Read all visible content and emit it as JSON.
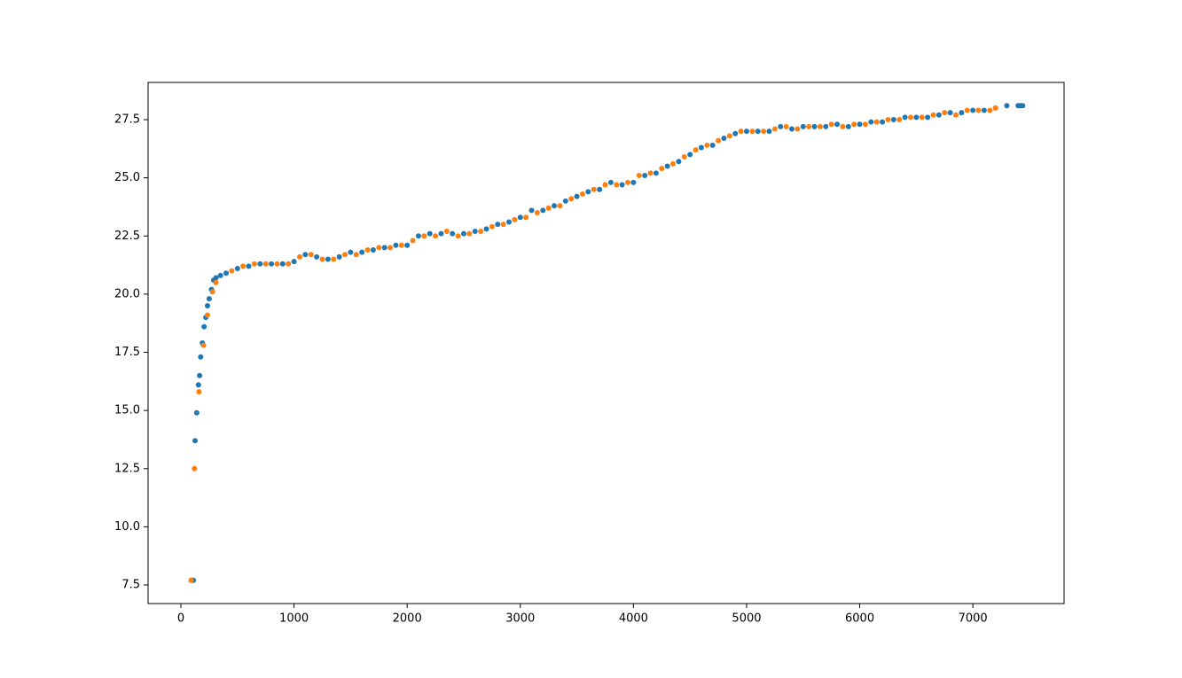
{
  "chart_data": {
    "type": "scatter",
    "xlim": [
      -290,
      7806
    ],
    "ylim": [
      6.7,
      29.1
    ],
    "xticks": [
      0,
      1000,
      2000,
      3000,
      4000,
      5000,
      6000,
      7000
    ],
    "yticks": [
      7.5,
      {
        "value": 10,
        "label": "10.0"
      },
      12.5,
      {
        "value": 15,
        "label": "15.0"
      },
      17.5,
      {
        "value": 20,
        "label": "20.0"
      },
      22.5,
      {
        "value": 25,
        "label": "25.0"
      },
      27.5
    ],
    "series": [
      {
        "color": "#1f77b4",
        "x": [
          95,
          110,
          125,
          140,
          155,
          165,
          175,
          190,
          205,
          220,
          235,
          250,
          270,
          290,
          310,
          350,
          400,
          500,
          600,
          700,
          800,
          900,
          1000,
          1100,
          1200,
          1300,
          1400,
          1500,
          1600,
          1700,
          1800,
          1900,
          2000,
          2100,
          2200,
          2300,
          2400,
          2500,
          2600,
          2700,
          2800,
          2900,
          3000,
          3100,
          3200,
          3300,
          3400,
          3500,
          3600,
          3700,
          3800,
          3900,
          4000,
          4100,
          4200,
          4300,
          4400,
          4500,
          4600,
          4700,
          4800,
          4900,
          5000,
          5100,
          5200,
          5300,
          5400,
          5500,
          5600,
          5700,
          5800,
          5900,
          6000,
          6100,
          6200,
          6300,
          6400,
          6500,
          6600,
          6700,
          6800,
          6900,
          7000,
          7100,
          7200,
          7300,
          7400,
          7420,
          7440
        ],
        "values": [
          7.7,
          7.7,
          13.7,
          14.9,
          16.1,
          16.5,
          17.3,
          17.9,
          18.6,
          19.0,
          19.5,
          19.8,
          20.2,
          20.6,
          20.7,
          20.8,
          20.9,
          21.1,
          21.2,
          21.3,
          21.3,
          21.3,
          21.4,
          21.7,
          21.6,
          21.5,
          21.6,
          21.8,
          21.8,
          21.9,
          22.0,
          22.1,
          22.1,
          22.5,
          22.6,
          22.6,
          22.6,
          22.6,
          22.7,
          22.8,
          23.0,
          23.1,
          23.3,
          23.6,
          23.6,
          23.8,
          24.0,
          24.2,
          24.4,
          24.5,
          24.8,
          24.7,
          24.8,
          25.1,
          25.2,
          25.5,
          25.7,
          26.0,
          26.3,
          26.4,
          26.7,
          26.9,
          27.0,
          27.0,
          27.0,
          27.2,
          27.1,
          27.2,
          27.2,
          27.2,
          27.3,
          27.2,
          27.3,
          27.4,
          27.4,
          27.5,
          27.6,
          27.6,
          27.6,
          27.7,
          27.8,
          27.8,
          27.9,
          27.9,
          28.0,
          28.1,
          28.1,
          28.1,
          28.1
        ]
      },
      {
        "color": "#ff7f0e",
        "x": [
          90,
          120,
          160,
          200,
          235,
          280,
          310,
          450,
          550,
          650,
          750,
          850,
          950,
          1050,
          1150,
          1250,
          1350,
          1450,
          1550,
          1650,
          1750,
          1850,
          1950,
          2050,
          2150,
          2250,
          2350,
          2450,
          2550,
          2650,
          2750,
          2850,
          2950,
          3050,
          3150,
          3250,
          3350,
          3450,
          3550,
          3650,
          3750,
          3850,
          3950,
          4050,
          4150,
          4250,
          4350,
          4450,
          4550,
          4650,
          4750,
          4850,
          4950,
          5050,
          5150,
          5250,
          5350,
          5450,
          5550,
          5650,
          5750,
          5850,
          5950,
          6050,
          6150,
          6250,
          6350,
          6450,
          6550,
          6650,
          6750,
          6850,
          6950,
          7050,
          7150,
          7200
        ],
        "values": [
          7.7,
          12.5,
          15.8,
          17.8,
          19.1,
          20.1,
          20.5,
          21.0,
          21.2,
          21.3,
          21.3,
          21.3,
          21.3,
          21.6,
          21.7,
          21.5,
          21.5,
          21.7,
          21.7,
          21.9,
          22.0,
          22.0,
          22.1,
          22.3,
          22.5,
          22.5,
          22.7,
          22.5,
          22.6,
          22.7,
          22.9,
          23.0,
          23.2,
          23.3,
          23.5,
          23.7,
          23.8,
          24.1,
          24.3,
          24.5,
          24.7,
          24.7,
          24.8,
          25.1,
          25.2,
          25.4,
          25.6,
          25.9,
          26.2,
          26.4,
          26.6,
          26.8,
          27.0,
          27.0,
          27.0,
          27.1,
          27.2,
          27.1,
          27.2,
          27.2,
          27.3,
          27.2,
          27.3,
          27.3,
          27.4,
          27.5,
          27.5,
          27.6,
          27.6,
          27.7,
          27.8,
          27.7,
          27.9,
          27.9,
          27.9,
          28.0
        ]
      }
    ]
  }
}
